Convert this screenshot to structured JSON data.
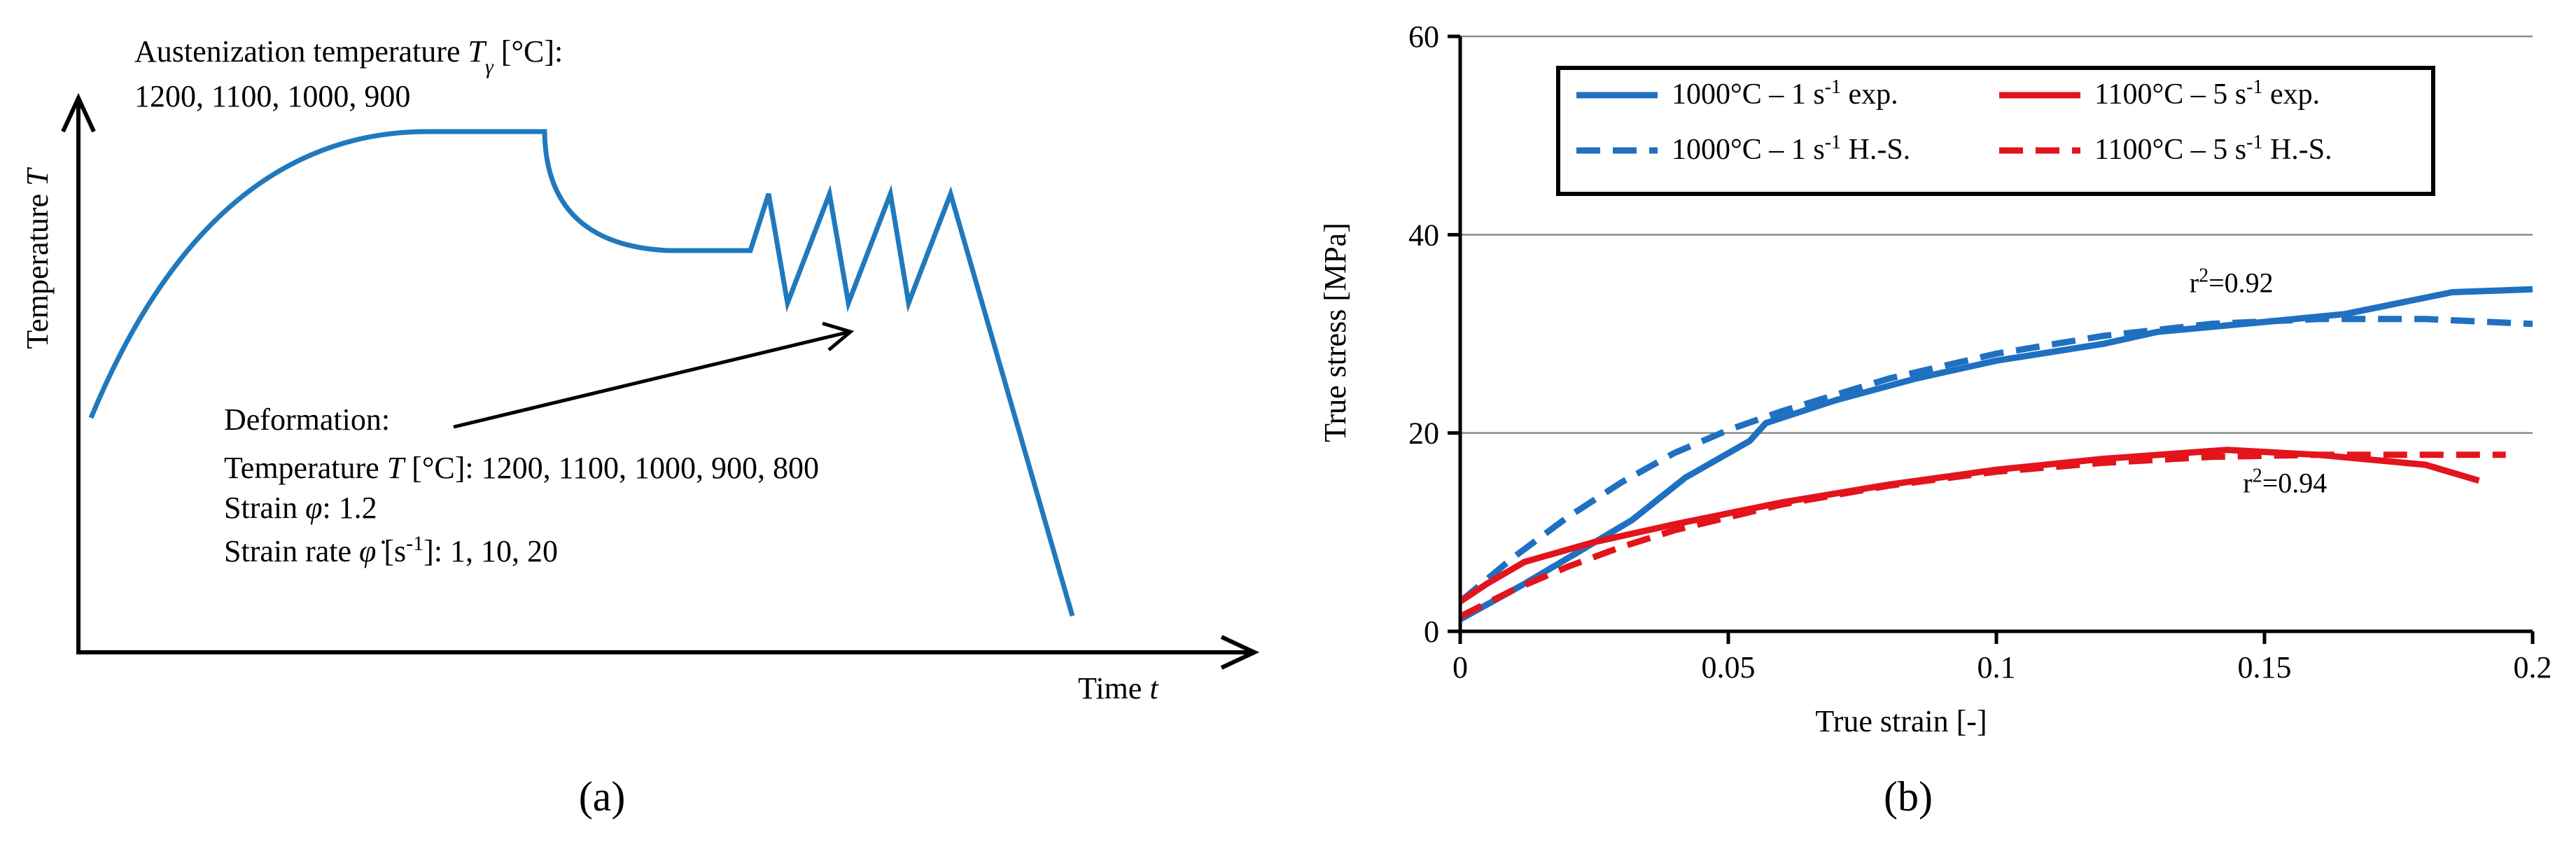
{
  "panel_a": {
    "caption": "(a)",
    "y_axis_label": "Temperature T",
    "x_axis_label": "Time t",
    "austenization_label": "Austenization temperature Tγ [°C]:",
    "austenization_values": "1200, 1100, 1000, 900",
    "deformation_title": "Deformation:",
    "deformation_temperature": "Temperature T [°C]: 1200, 1100, 1000, 900, 800",
    "deformation_strain": "Strain φ: 1.2",
    "deformation_strain_rate": "Strain rate φ̇ [s-1]: 1, 10, 20"
  },
  "panel_b": {
    "caption": "(b)"
  },
  "chart_data": {
    "type": "line",
    "title": "",
    "xlabel": "True strain [-]",
    "ylabel": "True stress [MPa]",
    "xlim": [
      0,
      0.2
    ],
    "ylim": [
      0,
      60
    ],
    "xticks": [
      "0",
      "0.05",
      "0.1",
      "0.15",
      "0.2"
    ],
    "yticks": [
      "0",
      "20",
      "40",
      "60"
    ],
    "grid": "horizontal",
    "legend_position": "top",
    "colors": {
      "blue": "#1f70c1",
      "red": "#e3141b"
    },
    "annotations": [
      {
        "text": "r2=0.92",
        "x": 0.136,
        "y": 34.2
      },
      {
        "text": "r2=0.94",
        "x": 0.146,
        "y": 14.0
      }
    ],
    "series": [
      {
        "name": "1000°C – 1 s-1 exp.",
        "color": "#1f70c1",
        "style": "solid",
        "x": [
          0,
          0.012,
          0.022,
          0.032,
          0.042,
          0.054,
          0.057,
          0.07,
          0.085,
          0.1,
          0.12,
          0.13,
          0.15,
          0.165,
          0.185,
          0.2
        ],
        "y": [
          1.2,
          4.8,
          8.0,
          11.2,
          15.5,
          19.2,
          21.0,
          23.3,
          25.5,
          27.3,
          29.0,
          30.2,
          31.2,
          32.0,
          34.2,
          34.5
        ]
      },
      {
        "name": "1000°C – 1 s-1 H.-S.",
        "color": "#1f70c1",
        "style": "dashed",
        "x": [
          0,
          0.01,
          0.02,
          0.03,
          0.04,
          0.05,
          0.06,
          0.08,
          0.1,
          0.12,
          0.14,
          0.16,
          0.18,
          0.2
        ],
        "y": [
          3.0,
          7.5,
          11.5,
          15.0,
          18.0,
          20.3,
          22.2,
          25.5,
          28.0,
          29.8,
          31.0,
          31.5,
          31.5,
          31.0
        ]
      },
      {
        "name": "1100°C – 5 s-1 exp.",
        "color": "#e3141b",
        "style": "solid",
        "x": [
          0,
          0.005,
          0.012,
          0.025,
          0.04,
          0.06,
          0.08,
          0.1,
          0.12,
          0.143,
          0.16,
          0.18,
          0.19
        ],
        "y": [
          3.0,
          4.8,
          7.0,
          9.0,
          10.8,
          13.0,
          14.8,
          16.3,
          17.4,
          18.3,
          17.8,
          16.8,
          15.2
        ]
      },
      {
        "name": "1100°C – 5 s-1 H.-S.",
        "color": "#e3141b",
        "style": "dashed",
        "x": [
          0,
          0.01,
          0.02,
          0.03,
          0.04,
          0.06,
          0.08,
          0.1,
          0.12,
          0.14,
          0.16,
          0.18,
          0.195
        ],
        "y": [
          1.5,
          4.2,
          6.5,
          8.5,
          10.2,
          12.8,
          14.7,
          16.1,
          17.0,
          17.6,
          17.8,
          17.8,
          17.8
        ]
      }
    ]
  }
}
